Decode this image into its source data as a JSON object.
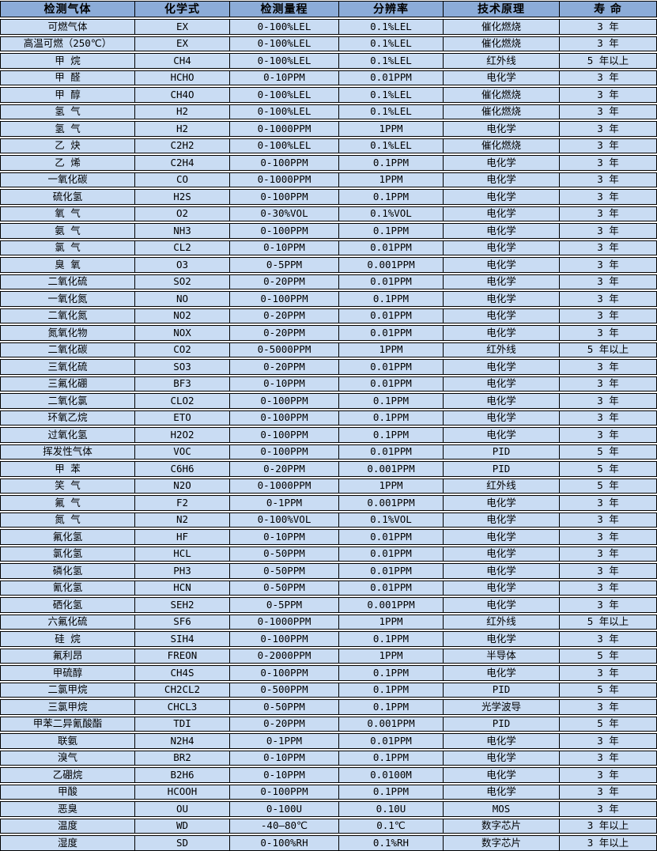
{
  "table": {
    "title": "gas-sensor-spec-table",
    "columns": [
      "检测气体",
      "化学式",
      "检测量程",
      "分辨率",
      "技术原理",
      "寿 命"
    ],
    "rows": [
      [
        "可燃气体",
        "EX",
        "0-100%LEL",
        "0.1%LEL",
        "催化燃烧",
        "3 年"
      ],
      [
        "高温可燃（250℃）",
        "EX",
        "0-100%LEL",
        "0.1%LEL",
        "催化燃烧",
        "3 年"
      ],
      [
        "甲 烷",
        "CH4",
        "0-100%LEL",
        "0.1%LEL",
        "红外线",
        "5 年以上"
      ],
      [
        "甲 醛",
        "HCHO",
        "0-10PPM",
        "0.01PPM",
        "电化学",
        "3 年"
      ],
      [
        "甲 醇",
        "CH4O",
        "0-100%LEL",
        "0.1%LEL",
        "催化燃烧",
        "3 年"
      ],
      [
        "氢 气",
        "H2",
        "0-100%LEL",
        "0.1%LEL",
        "催化燃烧",
        "3 年"
      ],
      [
        "氢 气",
        "H2",
        "0-1000PPM",
        "1PPM",
        "电化学",
        "3 年"
      ],
      [
        "乙 炔",
        "C2H2",
        "0-100%LEL",
        "0.1%LEL",
        "催化燃烧",
        "3 年"
      ],
      [
        "乙 烯",
        "C2H4",
        "0-100PPM",
        "0.1PPM",
        "电化学",
        "3 年"
      ],
      [
        "一氧化碳",
        "CO",
        "0-1000PPM",
        "1PPM",
        "电化学",
        "3 年"
      ],
      [
        "硫化氢",
        "H2S",
        "0-100PPM",
        "0.1PPM",
        "电化学",
        "3 年"
      ],
      [
        "氧 气",
        "O2",
        "0-30%VOL",
        "0.1%VOL",
        "电化学",
        "3 年"
      ],
      [
        "氨 气",
        "NH3",
        "0-100PPM",
        "0.1PPM",
        "电化学",
        "3 年"
      ],
      [
        "氯 气",
        "CL2",
        "0-10PPM",
        "0.01PPM",
        "电化学",
        "3 年"
      ],
      [
        "臭 氧",
        "O3",
        "0-5PPM",
        "0.001PPM",
        "电化学",
        "3 年"
      ],
      [
        "二氧化硫",
        "SO2",
        "0-20PPM",
        "0.01PPM",
        "电化学",
        "3 年"
      ],
      [
        "一氧化氮",
        "NO",
        "0-100PPM",
        "0.1PPM",
        "电化学",
        "3 年"
      ],
      [
        "二氧化氮",
        "NO2",
        "0-20PPM",
        "0.01PPM",
        "电化学",
        "3 年"
      ],
      [
        "氮氧化物",
        "NOX",
        "0-20PPM",
        "0.01PPM",
        "电化学",
        "3 年"
      ],
      [
        "二氧化碳",
        "CO2",
        "0-5000PPM",
        "1PPM",
        "红外线",
        "5 年以上"
      ],
      [
        "三氧化硫",
        "SO3",
        "0-20PPM",
        "0.01PPM",
        "电化学",
        "3 年"
      ],
      [
        "三氟化硼",
        "BF3",
        "0-10PPM",
        "0.01PPM",
        "电化学",
        "3 年"
      ],
      [
        "二氧化氯",
        "CLO2",
        "0-100PPM",
        "0.1PPM",
        "电化学",
        "3 年"
      ],
      [
        "环氧乙烷",
        "ETO",
        "0-100PPM",
        "0.1PPM",
        "电化学",
        "3 年"
      ],
      [
        "过氧化氢",
        "H2O2",
        "0-100PPM",
        "0.1PPM",
        "电化学",
        "3 年"
      ],
      [
        "挥发性气体",
        "VOC",
        "0-100PPM",
        "0.01PPM",
        "PID",
        "5 年"
      ],
      [
        "甲 苯",
        "C6H6",
        "0-20PPM",
        "0.001PPM",
        "PID",
        "5 年"
      ],
      [
        "笑 气",
        "N2O",
        "0-1000PPM",
        "1PPM",
        "红外线",
        "5 年"
      ],
      [
        "氟 气",
        "F2",
        "0-1PPM",
        "0.001PPM",
        "电化学",
        "3 年"
      ],
      [
        "氮 气",
        "N2",
        "0-100%VOL",
        "0.1%VOL",
        "电化学",
        "3 年"
      ],
      [
        "氟化氢",
        "HF",
        "0-10PPM",
        "0.01PPM",
        "电化学",
        "3 年"
      ],
      [
        "氯化氢",
        "HCL",
        "0-50PPM",
        "0.01PPM",
        "电化学",
        "3 年"
      ],
      [
        "磷化氢",
        "PH3",
        "0-50PPM",
        "0.01PPM",
        "电化学",
        "3 年"
      ],
      [
        "氰化氢",
        "HCN",
        "0-50PPM",
        "0.01PPM",
        "电化学",
        "3 年"
      ],
      [
        "硒化氢",
        "SEH2",
        "0-5PPM",
        "0.001PPM",
        "电化学",
        "3 年"
      ],
      [
        "六氟化硫",
        "SF6",
        "0-1000PPM",
        "1PPM",
        "红外线",
        "5 年以上"
      ],
      [
        "硅 烷",
        "SIH4",
        "0-100PPM",
        "0.1PPM",
        "电化学",
        "3 年"
      ],
      [
        "氟利昂",
        "FREON",
        "0-2000PPM",
        "1PPM",
        "半导体",
        "5 年"
      ],
      [
        "甲硫醇",
        "CH4S",
        "0-100PPM",
        "0.1PPM",
        "电化学",
        "3 年"
      ],
      [
        "二氯甲烷",
        "CH2CL2",
        "0-500PPM",
        "0.1PPM",
        "PID",
        "5 年"
      ],
      [
        "三氯甲烷",
        "CHCL3",
        "0-50PPM",
        "0.1PPM",
        "光学波导",
        "3 年"
      ],
      [
        "甲苯二异氰酸酯",
        "TDI",
        "0-20PPM",
        "0.001PPM",
        "PID",
        "5 年"
      ],
      [
        "联氨",
        "N2H4",
        "0-1PPM",
        "0.01PPM",
        "电化学",
        "3 年"
      ],
      [
        "溴气",
        "BR2",
        "0-10PPM",
        "0.1PPM",
        "电化学",
        "3 年"
      ],
      [
        "乙硼烷",
        "B2H6",
        "0-10PPM",
        "0.0100M",
        "电化学",
        "3 年"
      ],
      [
        "甲酸",
        "HCOOH",
        "0-100PPM",
        "0.1PPM",
        "电化学",
        "3 年"
      ],
      [
        "恶臭",
        "OU",
        "0-100U",
        "0.10U",
        "MOS",
        "3 年"
      ],
      [
        "温度",
        "WD",
        "-40—80℃",
        "0.1℃",
        "数字芯片",
        "3 年以上"
      ],
      [
        "湿度",
        "SD",
        "0-100%RH",
        "0.1%RH",
        "数字芯片",
        "3 年以上"
      ]
    ],
    "colors": {
      "header_bg": "#8cacd8",
      "row_bg": "#c9dcf3",
      "border": "#000000",
      "text": "#000000",
      "gap": "#ffffff"
    }
  }
}
